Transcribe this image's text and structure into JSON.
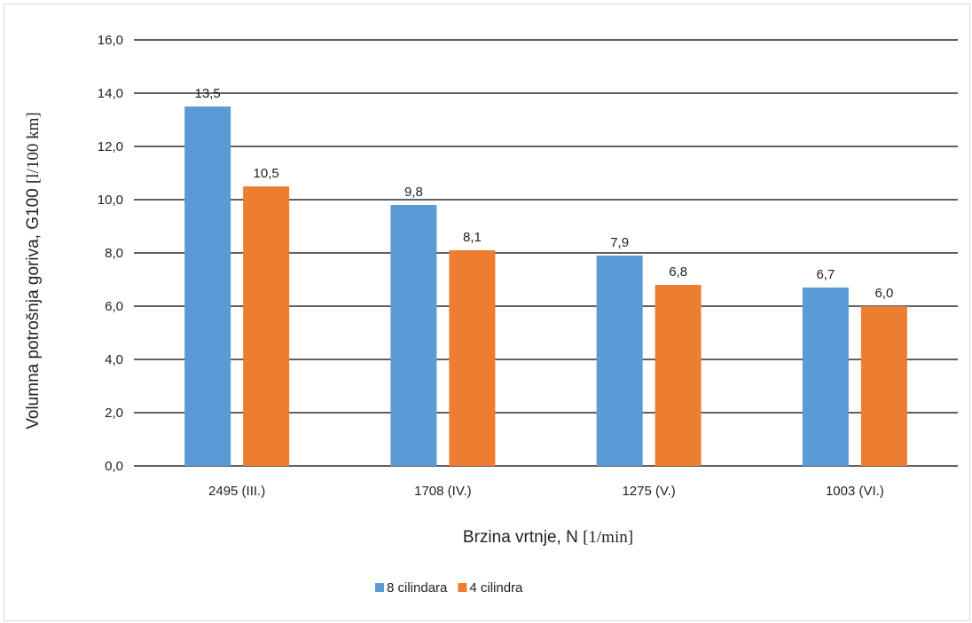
{
  "chart_data": {
    "type": "bar",
    "categories": [
      "2495 (III.)",
      "1708 (IV.)",
      "1275 (V.)",
      "1003 (VI.)"
    ],
    "series": [
      {
        "name": "8 cilindara",
        "color": "#5b9bd5",
        "values": [
          13.5,
          9.8,
          7.9,
          6.7
        ]
      },
      {
        "name": "4 cilindra",
        "color": "#ed7d31",
        "values": [
          10.5,
          8.1,
          6.8,
          6.0
        ]
      }
    ],
    "data_labels": [
      [
        "13,5",
        "9,8",
        "7,9",
        "6,7"
      ],
      [
        "10,5",
        "8,1",
        "6,8",
        "6,0"
      ]
    ],
    "y_ticks": [
      0,
      2,
      4,
      6,
      8,
      10,
      12,
      14,
      16
    ],
    "y_tick_labels": [
      "0,0",
      "2,0",
      "4,0",
      "6,0",
      "8,0",
      "10,0",
      "12,0",
      "14,0",
      "16,0"
    ],
    "ylim": [
      0,
      16
    ],
    "xlabel": {
      "text": "Brzina vrtnje, N ",
      "unit": "[1/min]"
    },
    "ylabel": {
      "text": "Volumna potrošnja goriva, G100 ",
      "unit": "[l/100 km]"
    },
    "grid": true,
    "legend_position": "bottom",
    "gridline_color": "#000000"
  }
}
